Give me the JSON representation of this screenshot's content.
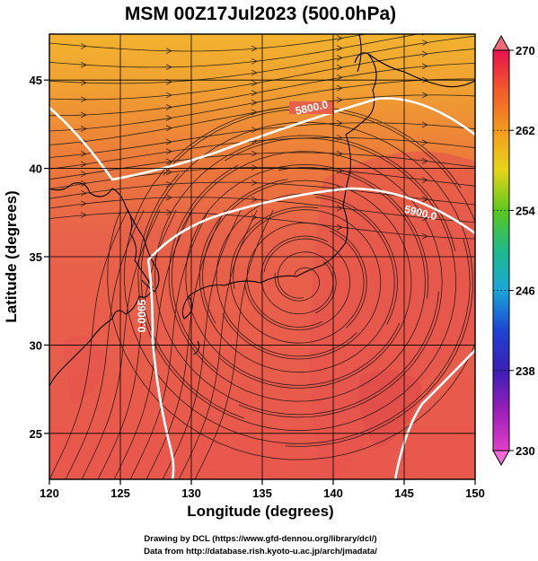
{
  "title": "MSM 00Z17Jul2023 (500.0hPa)",
  "map": {
    "xlabel": "Longitude (degrees)",
    "ylabel": "Latitude  (degrees)",
    "xlim": [
      120,
      150
    ],
    "ylim": [
      22.4,
      47.6
    ],
    "xticks": [
      120,
      125,
      130,
      135,
      140,
      145,
      150
    ],
    "yticks": [
      25,
      30,
      35,
      40,
      45
    ],
    "grid_lon": [
      120,
      125,
      130,
      135,
      140,
      145,
      150
    ],
    "grid_lat": [
      25,
      30,
      35,
      40,
      45
    ],
    "typhoon_like_center": {
      "lon": 137.8,
      "lat": 33.7
    },
    "contour_labels": [
      "5800.0",
      "5900.0",
      "0.0065"
    ]
  },
  "colorbar": {
    "min": 230,
    "max": 270,
    "ticks": [
      "270",
      "262",
      "254",
      "246",
      "238",
      "230"
    ],
    "colors": [
      "#e8114f",
      "#f25b2a",
      "#f39a1e",
      "#e7d51a",
      "#5bc81c",
      "#1fb98c",
      "#1aa6d8",
      "#1e43d2",
      "#3b1fb5",
      "#9a1fb8",
      "#e040c8"
    ]
  },
  "credits": {
    "line1": "Drawing by DCL (https://www.gfd-dennou.org/library/dcl/)",
    "line2": "Data from http://database.rish.kyoto-u.ac.jp/arch/jmadata/"
  },
  "colors": {
    "field_high": "#e8594a",
    "field_mid": "#ec7038",
    "field_low": "#f0a033",
    "contour": "#ffffff",
    "coast": "#000000"
  }
}
